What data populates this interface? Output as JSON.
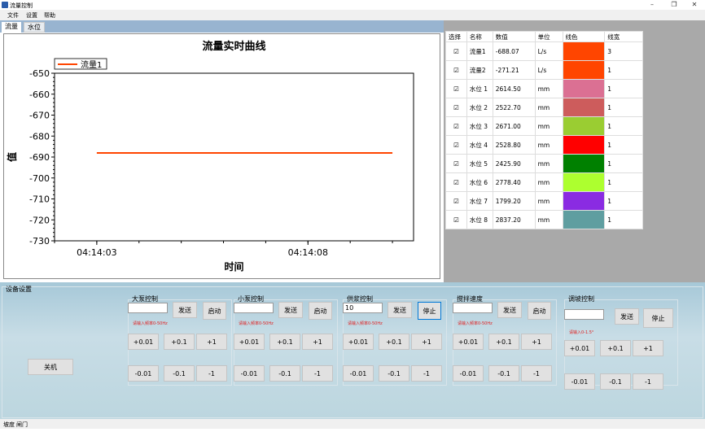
{
  "window": {
    "title": "流量控制"
  },
  "menu": [
    "文件",
    "设置",
    "帮助"
  ],
  "tabs": [
    "流量",
    "水位"
  ],
  "chart_data": {
    "type": "line",
    "title": "流量实时曲线",
    "xlabel": "时间",
    "ylabel": "值",
    "ylim": [
      -730,
      -650
    ],
    "yticks": [
      -650,
      -660,
      -670,
      -680,
      -690,
      -700,
      -710,
      -720,
      -730
    ],
    "xticks": [
      "04:14:03",
      "04:14:08"
    ],
    "xlim": [
      "04:14:02",
      "04:14:10.5"
    ],
    "legend_placement": "top-left",
    "grid": false,
    "series": [
      {
        "name": "流量1",
        "color": "#ff4500",
        "x": [
          "04:14:03",
          "04:14:10"
        ],
        "y": [
          -688.07,
          -688.07
        ]
      }
    ]
  },
  "table": {
    "headers": [
      "选择",
      "名称",
      "数值",
      "单位",
      "线色",
      "线宽"
    ],
    "rows": [
      {
        "checked": true,
        "name": "流量1",
        "value": "-688.07",
        "unit": "L/s",
        "color": "#ff4500",
        "width": "3"
      },
      {
        "checked": true,
        "name": "流量2",
        "value": "-271.21",
        "unit": "L/s",
        "color": "#ff4500",
        "width": "1"
      },
      {
        "checked": true,
        "name": "水位 1",
        "value": "2614.50",
        "unit": "mm",
        "color": "#db7093",
        "width": "1"
      },
      {
        "checked": true,
        "name": "水位 2",
        "value": "2522.70",
        "unit": "mm",
        "color": "#cd5c5c",
        "width": "1"
      },
      {
        "checked": true,
        "name": "水位 3",
        "value": "2671.00",
        "unit": "mm",
        "color": "#9acd32",
        "width": "1"
      },
      {
        "checked": true,
        "name": "水位 4",
        "value": "2528.80",
        "unit": "mm",
        "color": "#ff0000",
        "width": "1"
      },
      {
        "checked": true,
        "name": "水位 5",
        "value": "2425.90",
        "unit": "mm",
        "color": "#008000",
        "width": "1"
      },
      {
        "checked": true,
        "name": "水位 6",
        "value": "2778.40",
        "unit": "mm",
        "color": "#adff2f",
        "width": "1"
      },
      {
        "checked": true,
        "name": "水位 7",
        "value": "1799.20",
        "unit": "mm",
        "color": "#8a2be2",
        "width": "1"
      },
      {
        "checked": true,
        "name": "水位 8",
        "value": "2837.20",
        "unit": "mm",
        "color": "#5f9ea0",
        "width": "1"
      }
    ]
  },
  "device": {
    "title": "设备设置",
    "shutdown": "关机",
    "groups": [
      {
        "title": "大泵控制",
        "input": "",
        "send": "发送",
        "action": "启动",
        "hint": "请输入频率0-50Hz"
      },
      {
        "title": "小泵控制",
        "input": "",
        "send": "发送",
        "action": "启动",
        "hint": "请输入频率0-50Hz"
      },
      {
        "title": "供浆控制",
        "input": "10",
        "send": "发送",
        "action": "停止",
        "hint": "请输入频率0-50Hz"
      },
      {
        "title": "搅拌速度",
        "input": "",
        "send": "发送",
        "action": "启动",
        "hint": "请输入频率0-50Hz"
      },
      {
        "title": "调坡控制",
        "input": "",
        "send": "发送",
        "action": "停止",
        "hint": "请输入0-1.5°"
      }
    ],
    "plus": [
      "+0.01",
      "+0.1",
      "+1"
    ],
    "minus": [
      "-0.01",
      "-0.1",
      "-1"
    ]
  },
  "status": [
    "坡度",
    "闸门"
  ]
}
